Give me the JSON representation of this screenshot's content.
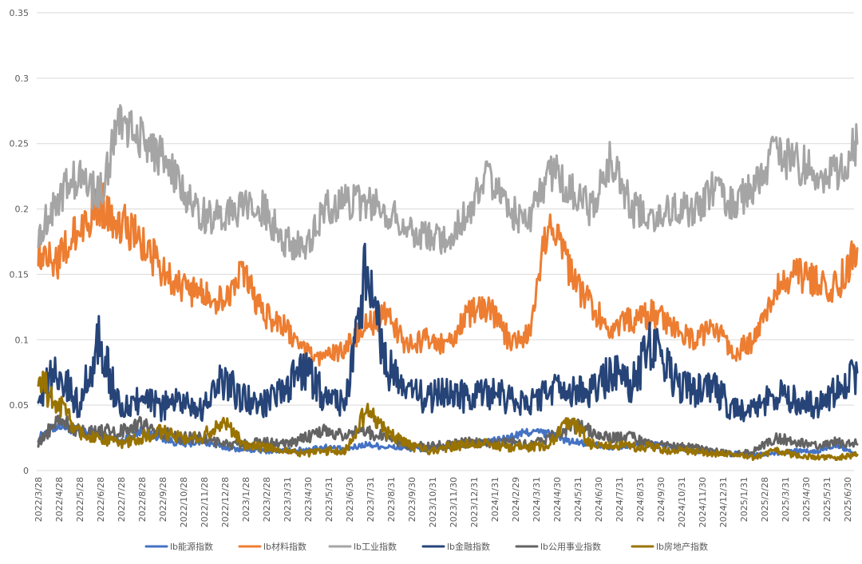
{
  "chart_data": {
    "type": "line",
    "title": "",
    "xlabel": "",
    "ylabel": "",
    "ylim": [
      0,
      0.35
    ],
    "y_ticks": [
      "0",
      "0.05",
      "0.1",
      "0.15",
      "0.2",
      "0.25",
      "0.3",
      "0.35"
    ],
    "x_ticks": [
      "2022/3/28",
      "2022/4/28",
      "2022/5/28",
      "2022/6/28",
      "2022/7/28",
      "2022/8/28",
      "2022/9/28",
      "2022/10/28",
      "2022/11/28",
      "2022/12/28",
      "2023/1/28",
      "2023/2/28",
      "2023/3/31",
      "2023/4/30",
      "2023/5/31",
      "2023/6/30",
      "2023/7/31",
      "2023/8/31",
      "2023/9/30",
      "2023/10/31",
      "2023/11/30",
      "2023/12/31",
      "2024/1/31",
      "2024/2/29",
      "2024/3/31",
      "2024/4/30",
      "2024/5/31",
      "2024/6/30",
      "2024/7/31",
      "2024/8/31",
      "2024/9/30",
      "2024/10/31",
      "2024/11/30",
      "2024/12/31",
      "2025/1/31",
      "2025/2/28",
      "2025/3/31",
      "2025/4/30",
      "2025/5/31",
      "2025/6/30"
    ],
    "grid": true,
    "legend_position": "bottom",
    "x": [
      "2022/3/28",
      "2022/4/28",
      "2022/5/28",
      "2022/6/28",
      "2022/7/28",
      "2022/8/28",
      "2022/9/28",
      "2022/10/28",
      "2022/11/28",
      "2022/12/28",
      "2023/1/28",
      "2023/2/28",
      "2023/3/31",
      "2023/4/30",
      "2023/5/31",
      "2023/6/30",
      "2023/7/31",
      "2023/8/31",
      "2023/9/30",
      "2023/10/31",
      "2023/11/30",
      "2023/12/31",
      "2024/1/31",
      "2024/2/29",
      "2024/3/31",
      "2024/4/30",
      "2024/5/31",
      "2024/6/30",
      "2024/7/31",
      "2024/8/31",
      "2024/9/30",
      "2024/10/31",
      "2024/11/30",
      "2024/12/31",
      "2025/1/31",
      "2025/2/28",
      "2025/3/31",
      "2025/4/30",
      "2025/5/31",
      "2025/6/30",
      "2025/7/15"
    ],
    "series": [
      {
        "name": "lb能源指数",
        "color": "#4472C4",
        "values": [
          0.025,
          0.035,
          0.03,
          0.028,
          0.022,
          0.03,
          0.025,
          0.02,
          0.022,
          0.018,
          0.016,
          0.015,
          0.015,
          0.016,
          0.018,
          0.016,
          0.02,
          0.018,
          0.017,
          0.016,
          0.018,
          0.02,
          0.022,
          0.025,
          0.03,
          0.028,
          0.022,
          0.02,
          0.018,
          0.02,
          0.02,
          0.018,
          0.015,
          0.014,
          0.013,
          0.012,
          0.013,
          0.015,
          0.014,
          0.02,
          0.012
        ]
      },
      {
        "name": "lb材料指数",
        "color": "#ED7D31",
        "values": [
          0.17,
          0.16,
          0.185,
          0.205,
          0.19,
          0.175,
          0.155,
          0.14,
          0.135,
          0.13,
          0.15,
          0.12,
          0.11,
          0.09,
          0.085,
          0.095,
          0.11,
          0.12,
          0.095,
          0.1,
          0.095,
          0.12,
          0.125,
          0.1,
          0.105,
          0.2,
          0.15,
          0.125,
          0.11,
          0.115,
          0.12,
          0.11,
          0.1,
          0.11,
          0.09,
          0.1,
          0.14,
          0.15,
          0.145,
          0.14,
          0.17
        ]
      },
      {
        "name": "lb工业指数",
        "color": "#A5A5A5",
        "values": [
          0.18,
          0.21,
          0.225,
          0.21,
          0.27,
          0.255,
          0.24,
          0.215,
          0.195,
          0.195,
          0.2,
          0.2,
          0.175,
          0.17,
          0.2,
          0.205,
          0.205,
          0.2,
          0.185,
          0.18,
          0.175,
          0.2,
          0.225,
          0.2,
          0.19,
          0.23,
          0.215,
          0.2,
          0.24,
          0.2,
          0.195,
          0.2,
          0.2,
          0.215,
          0.2,
          0.22,
          0.245,
          0.235,
          0.23,
          0.225,
          0.25
        ]
      },
      {
        "name": "lb金融指数",
        "color": "#264478",
        "values": [
          0.06,
          0.075,
          0.05,
          0.1,
          0.045,
          0.055,
          0.048,
          0.055,
          0.045,
          0.07,
          0.055,
          0.05,
          0.06,
          0.08,
          0.055,
          0.05,
          0.15,
          0.08,
          0.06,
          0.055,
          0.06,
          0.055,
          0.06,
          0.055,
          0.05,
          0.065,
          0.06,
          0.06,
          0.075,
          0.065,
          0.1,
          0.07,
          0.06,
          0.065,
          0.045,
          0.045,
          0.06,
          0.055,
          0.05,
          0.06,
          0.075
        ]
      },
      {
        "name": "lb公用事业指数",
        "color": "#636363",
        "values": [
          0.02,
          0.04,
          0.03,
          0.03,
          0.03,
          0.035,
          0.03,
          0.025,
          0.025,
          0.02,
          0.02,
          0.022,
          0.02,
          0.025,
          0.03,
          0.028,
          0.03,
          0.025,
          0.02,
          0.018,
          0.02,
          0.022,
          0.02,
          0.022,
          0.02,
          0.025,
          0.035,
          0.03,
          0.025,
          0.025,
          0.02,
          0.018,
          0.018,
          0.015,
          0.012,
          0.015,
          0.025,
          0.022,
          0.02,
          0.022,
          0.02
        ]
      },
      {
        "name": "lb房地产指数",
        "color": "#997300",
        "values": [
          0.07,
          0.05,
          0.03,
          0.025,
          0.02,
          0.025,
          0.03,
          0.025,
          0.025,
          0.04,
          0.02,
          0.018,
          0.015,
          0.013,
          0.015,
          0.015,
          0.045,
          0.03,
          0.02,
          0.015,
          0.018,
          0.02,
          0.02,
          0.018,
          0.018,
          0.02,
          0.04,
          0.02,
          0.02,
          0.018,
          0.018,
          0.015,
          0.015,
          0.013,
          0.012,
          0.01,
          0.015,
          0.012,
          0.01,
          0.01,
          0.012
        ]
      }
    ]
  }
}
